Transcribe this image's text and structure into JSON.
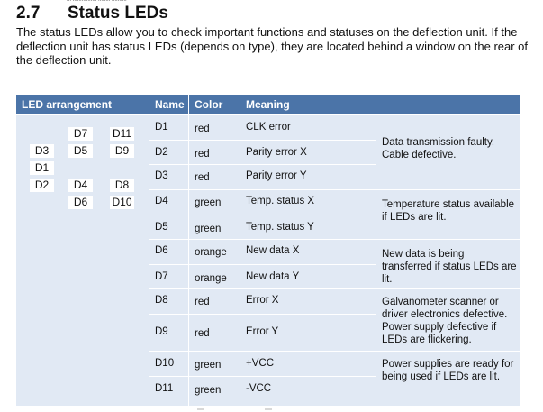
{
  "header_fragment": "... ................ ........ ..........",
  "section": {
    "number": "2.7",
    "title": "Status LEDs",
    "intro": "The status LEDs allow you to check important functions and statuses on the deflection unit. If the deflection unit has status LEDs (depends on type), they are located behind a window on the rear of the deflection unit."
  },
  "table": {
    "headers": {
      "led_arrangement": "LED arrangement",
      "name": "Name",
      "color": "Color",
      "meaning": "Meaning"
    },
    "led_labels": [
      "D7",
      "D11",
      "D3",
      "D5",
      "D9",
      "D1",
      "D2",
      "D4",
      "D8",
      "D6",
      "D10"
    ],
    "rows": [
      {
        "name": "D1",
        "color": "red",
        "meaning": "CLK error"
      },
      {
        "name": "D2",
        "color": "red",
        "meaning": "Parity error X"
      },
      {
        "name": "D3",
        "color": "red",
        "meaning": "Parity error Y"
      },
      {
        "name": "D4",
        "color": "green",
        "meaning": "Temp. status X"
      },
      {
        "name": "D5",
        "color": "green",
        "meaning": "Temp. status Y"
      },
      {
        "name": "D6",
        "color": "orange",
        "meaning": "New data X"
      },
      {
        "name": "D7",
        "color": "orange",
        "meaning": "New data Y"
      },
      {
        "name": "D8",
        "color": "red",
        "meaning": "Error X"
      },
      {
        "name": "D9",
        "color": "red",
        "meaning": "Error Y"
      },
      {
        "name": "D10",
        "color": "green",
        "meaning": "+VCC"
      },
      {
        "name": "D11",
        "color": "green",
        "meaning": "-VCC"
      }
    ],
    "group_notes": [
      "Data transmission faulty. Cable defective.",
      "Temperature status available if LEDs are lit.",
      "New data is being transferred if status LEDs are lit.",
      "Galvanometer scanner or driver electronics defective. Power supply defective if LEDs are flickering.",
      "Power supplies are ready for being used if LEDs are lit."
    ]
  },
  "colors": {
    "header_bg": "#4b74a8",
    "cell_bg": "#e1e9f4"
  }
}
